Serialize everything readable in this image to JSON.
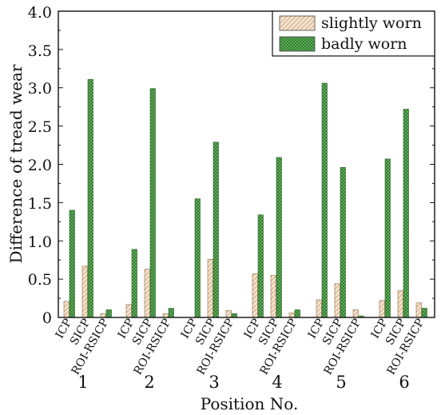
{
  "chart_data": {
    "type": "bar",
    "xlabel": "Position No.",
    "ylabel": "Difference of tread wear",
    "ylim": [
      0,
      4.0
    ],
    "yticks": [
      "0",
      "0.5",
      "1.0",
      "1.5",
      "2.0",
      "2.5",
      "3.0",
      "3.5",
      "4.0"
    ],
    "methods": [
      "ICP",
      "SICP",
      "ROI-RSICP"
    ],
    "positions": [
      "1",
      "2",
      "3",
      "4",
      "5",
      "6"
    ],
    "legend_position": "top-right",
    "grid": false,
    "series": [
      {
        "name": "slightly worn",
        "color": "#f3d9bd",
        "pattern": "diagonal-hatch",
        "values": [
          [
            0.21,
            0.67,
            0.05
          ],
          [
            0.17,
            0.63,
            0.05
          ],
          [
            0.0,
            0.76,
            0.09
          ],
          [
            0.57,
            0.55,
            0.06
          ],
          [
            0.23,
            0.44,
            0.1
          ],
          [
            0.22,
            0.35,
            0.19
          ]
        ]
      },
      {
        "name": "badly worn",
        "color": "#5fb85a",
        "pattern": "crosshatch",
        "values": [
          [
            1.4,
            3.11,
            0.1
          ],
          [
            0.89,
            2.99,
            0.12
          ],
          [
            1.55,
            2.29,
            0.05
          ],
          [
            1.34,
            2.09,
            0.1
          ],
          [
            3.06,
            1.96,
            0.02
          ],
          [
            2.07,
            2.72,
            0.12
          ]
        ]
      }
    ]
  }
}
